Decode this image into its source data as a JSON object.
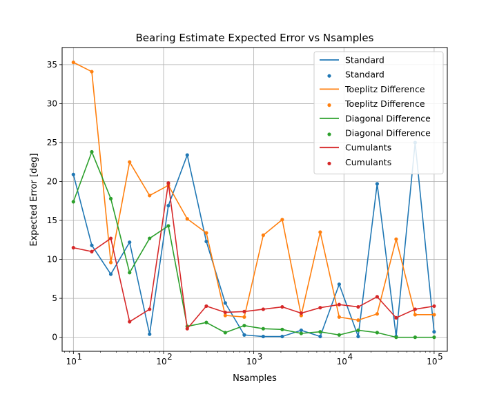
{
  "chart_data": {
    "type": "line",
    "title": "Bearing Estimate Expected Error vs Nsamples",
    "xlabel": "Nsamples",
    "ylabel": "Expected Error [deg]",
    "xscale": "log",
    "xlim": [
      7.5,
      140000
    ],
    "ylim": [
      -1.8,
      37.2
    ],
    "grid": true,
    "legend_position": "top-right",
    "x_ticks": [
      10,
      100,
      1000,
      10000,
      100000
    ],
    "x_tick_labels": [
      "10",
      "10",
      "10",
      "10",
      "10"
    ],
    "x_tick_exponents": [
      "1",
      "2",
      "3",
      "4",
      "5"
    ],
    "y_ticks": [
      0,
      5,
      10,
      15,
      20,
      25,
      30,
      35
    ],
    "y_tick_labels": [
      "0",
      "5",
      "10",
      "15",
      "20",
      "25",
      "30",
      "35"
    ],
    "x": [
      10,
      16,
      26,
      42,
      70,
      113,
      183,
      298,
      483,
      785,
      1274,
      2069,
      3359,
      5455,
      8859,
      14384,
      23357,
      37927,
      61585,
      100000
    ],
    "series": [
      {
        "name": "Standard",
        "color": "#1f77b4",
        "values": [
          20.9,
          11.8,
          8.1,
          12.2,
          0.4,
          16.9,
          23.4,
          12.3,
          4.4,
          0.3,
          0.1,
          0.1,
          0.9,
          0.1,
          6.8,
          0.1,
          19.7,
          0.1,
          25.0,
          0.7
        ]
      },
      {
        "name": "Toeplitz Difference",
        "color": "#ff7f0e",
        "values": [
          35.3,
          34.1,
          9.6,
          22.5,
          18.2,
          19.5,
          15.2,
          13.4,
          2.8,
          2.6,
          13.1,
          15.1,
          2.8,
          13.5,
          2.6,
          2.2,
          3.0,
          12.6,
          2.9,
          2.9
        ]
      },
      {
        "name": "Diagonal Difference",
        "color": "#2ca02c",
        "values": [
          17.4,
          23.8,
          17.8,
          8.3,
          12.7,
          14.3,
          1.4,
          1.9,
          0.6,
          1.5,
          1.1,
          1.0,
          0.5,
          0.7,
          0.3,
          0.9,
          0.6,
          0.0,
          0.0,
          0.0
        ]
      },
      {
        "name": "Cumulants",
        "color": "#d62728",
        "values": [
          11.5,
          11.0,
          12.7,
          2.0,
          3.6,
          19.8,
          1.1,
          4.0,
          3.2,
          3.3,
          3.6,
          3.9,
          3.1,
          3.8,
          4.2,
          3.9,
          5.2,
          2.5,
          3.6,
          4.0
        ]
      }
    ]
  }
}
